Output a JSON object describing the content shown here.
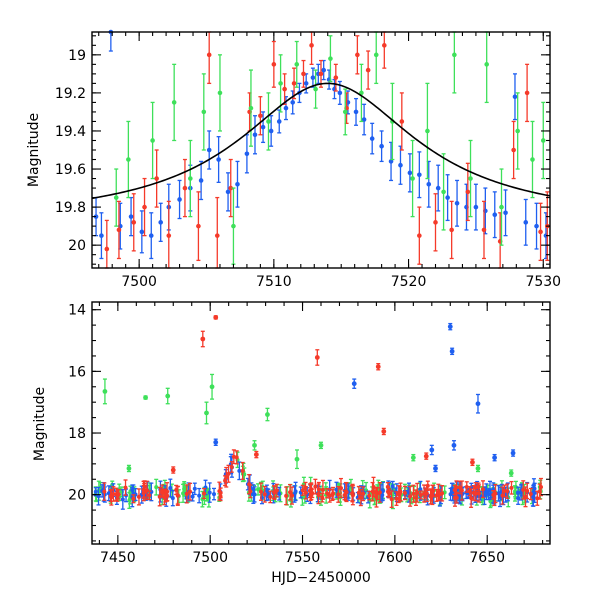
{
  "colors": {
    "blue": "#1f5ff0",
    "red": "#f53a2a",
    "green": "#3ee05a"
  },
  "chart_data": [
    {
      "type": "scatter",
      "panel": "top",
      "xlabel": "",
      "ylabel": "Magnitude",
      "xlim": [
        7496.5,
        7530.5
      ],
      "ylim": [
        20.12,
        18.88
      ],
      "inverted_y": true,
      "x_ticks": [
        "7500",
        "7510",
        "7520",
        "7530"
      ],
      "y_ticks": [
        "19",
        "19.2",
        "19.4",
        "19.6",
        "19.8",
        "20"
      ],
      "fit_curve": {
        "t0": 7514.0,
        "width": 8.0,
        "baseline": 19.88,
        "peak": 19.15
      },
      "series": [
        {
          "color": "blue",
          "points": [
            [
              7496.8,
              19.85,
              0.1
            ],
            [
              7497.2,
              19.95,
              0.12
            ],
            [
              7497.9,
              18.88,
              0.1
            ],
            [
              7498.6,
              19.9,
              0.12
            ],
            [
              7499.4,
              19.85,
              0.1
            ],
            [
              7500.2,
              19.93,
              0.11
            ],
            [
              7500.9,
              19.95,
              0.12
            ],
            [
              7501.6,
              19.88,
              0.1
            ],
            [
              7502.2,
              19.8,
              0.12
            ],
            [
              7503.0,
              19.76,
              0.1
            ],
            [
              7503.8,
              19.7,
              0.12
            ],
            [
              7504.6,
              19.66,
              0.1
            ],
            [
              7505.2,
              19.5,
              0.1
            ],
            [
              7505.9,
              19.55,
              0.12
            ],
            [
              7506.6,
              19.72,
              0.1
            ],
            [
              7507.3,
              19.68,
              0.12
            ],
            [
              7508.0,
              19.52,
              0.1
            ],
            [
              7508.6,
              19.42,
              0.1
            ],
            [
              7509.2,
              19.38,
              0.08
            ],
            [
              7509.8,
              19.4,
              0.08
            ],
            [
              7510.4,
              19.35,
              0.06
            ],
            [
              7510.9,
              19.28,
              0.06
            ],
            [
              7511.4,
              19.25,
              0.06
            ],
            [
              7511.9,
              19.2,
              0.05
            ],
            [
              7512.4,
              19.15,
              0.05
            ],
            [
              7512.9,
              19.12,
              0.05
            ],
            [
              7513.3,
              19.1,
              0.05
            ],
            [
              7513.7,
              19.08,
              0.05
            ],
            [
              7514.1,
              19.13,
              0.05
            ],
            [
              7514.5,
              19.18,
              0.05
            ],
            [
              7514.9,
              19.2,
              0.06
            ],
            [
              7515.5,
              19.25,
              0.06
            ],
            [
              7516.1,
              19.3,
              0.07
            ],
            [
              7516.7,
              19.34,
              0.08
            ],
            [
              7517.3,
              19.44,
              0.08
            ],
            [
              7518.0,
              19.48,
              0.08
            ],
            [
              7518.7,
              19.56,
              0.1
            ],
            [
              7519.4,
              19.58,
              0.1
            ],
            [
              7520.1,
              19.62,
              0.1
            ],
            [
              7520.8,
              19.63,
              0.12
            ],
            [
              7521.5,
              19.68,
              0.12
            ],
            [
              7522.2,
              19.7,
              0.12
            ],
            [
              7522.9,
              19.75,
              0.12
            ],
            [
              7523.6,
              19.78,
              0.12
            ],
            [
              7524.3,
              19.8,
              0.12
            ],
            [
              7525.0,
              19.8,
              0.12
            ],
            [
              7525.7,
              19.82,
              0.12
            ],
            [
              7526.4,
              19.84,
              0.12
            ],
            [
              7527.2,
              19.83,
              0.12
            ],
            [
              7527.9,
              19.22,
              0.12
            ],
            [
              7528.7,
              19.88,
              0.12
            ],
            [
              7529.5,
              19.9,
              0.12
            ],
            [
              7530.2,
              19.95,
              0.12
            ]
          ]
        },
        {
          "color": "red",
          "points": [
            [
              7497.6,
              20.02,
              0.15
            ],
            [
              7498.5,
              19.92,
              0.15
            ],
            [
              7499.6,
              19.88,
              0.15
            ],
            [
              7500.4,
              19.8,
              0.15
            ],
            [
              7501.3,
              19.65,
              0.15
            ],
            [
              7502.2,
              19.95,
              0.18
            ],
            [
              7503.4,
              19.7,
              0.15
            ],
            [
              7504.4,
              19.9,
              0.18
            ],
            [
              7505.2,
              19.0,
              0.15
            ],
            [
              7505.8,
              19.95,
              0.2
            ],
            [
              7506.8,
              19.7,
              0.15
            ],
            [
              7508.2,
              19.3,
              0.1
            ],
            [
              7509.0,
              19.32,
              0.1
            ],
            [
              7510.0,
              19.05,
              0.12
            ],
            [
              7510.8,
              19.18,
              0.08
            ],
            [
              7511.5,
              19.15,
              0.08
            ],
            [
              7512.2,
              19.1,
              0.07
            ],
            [
              7512.8,
              18.95,
              0.1
            ],
            [
              7513.5,
              19.1,
              0.07
            ],
            [
              7514.6,
              19.12,
              0.07
            ],
            [
              7515.4,
              19.28,
              0.08
            ],
            [
              7516.2,
              19.0,
              0.1
            ],
            [
              7517.0,
              19.08,
              0.1
            ],
            [
              7518.2,
              18.95,
              0.12
            ],
            [
              7519.5,
              19.35,
              0.15
            ],
            [
              7520.8,
              19.95,
              0.15
            ],
            [
              7522.0,
              19.88,
              0.15
            ],
            [
              7523.2,
              19.92,
              0.15
            ],
            [
              7524.4,
              19.72,
              0.15
            ],
            [
              7525.6,
              19.92,
              0.15
            ],
            [
              7526.8,
              19.98,
              0.15
            ],
            [
              7527.8,
              19.5,
              0.15
            ],
            [
              7528.8,
              19.2,
              0.15
            ],
            [
              7529.8,
              19.93,
              0.15
            ],
            [
              7530.3,
              19.9,
              0.18
            ]
          ]
        },
        {
          "color": "green",
          "points": [
            [
              7498.3,
              19.75,
              0.15
            ],
            [
              7499.2,
              19.55,
              0.2
            ],
            [
              7501.0,
              19.45,
              0.2
            ],
            [
              7502.6,
              19.25,
              0.2
            ],
            [
              7503.8,
              19.65,
              0.2
            ],
            [
              7504.8,
              19.3,
              0.2
            ],
            [
              7506.0,
              19.2,
              0.2
            ],
            [
              7507.0,
              19.9,
              0.2
            ],
            [
              7508.3,
              19.28,
              0.2
            ],
            [
              7509.6,
              19.35,
              0.15
            ],
            [
              7510.5,
              19.15,
              0.15
            ],
            [
              7511.7,
              19.05,
              0.12
            ],
            [
              7513.1,
              19.18,
              0.1
            ],
            [
              7514.2,
              19.02,
              0.12
            ],
            [
              7515.3,
              19.3,
              0.12
            ],
            [
              7516.5,
              19.2,
              0.15
            ],
            [
              7517.6,
              19.0,
              0.15
            ],
            [
              7518.8,
              19.35,
              0.2
            ],
            [
              7520.3,
              19.65,
              0.2
            ],
            [
              7521.4,
              19.4,
              0.25
            ],
            [
              7522.6,
              19.72,
              0.2
            ],
            [
              7523.4,
              19.0,
              0.2
            ],
            [
              7524.6,
              19.65,
              0.2
            ],
            [
              7525.8,
              19.05,
              0.2
            ],
            [
              7526.9,
              19.8,
              0.2
            ],
            [
              7528.1,
              19.4,
              0.2
            ],
            [
              7529.2,
              19.55,
              0.2
            ],
            [
              7530.0,
              19.45,
              0.2
            ]
          ]
        }
      ]
    },
    {
      "type": "scatter",
      "panel": "bottom",
      "xlabel": "HJD−2450000",
      "ylabel": "Magnitude",
      "xlim": [
        7436,
        7684
      ],
      "ylim": [
        21.6,
        13.75
      ],
      "inverted_y": true,
      "x_ticks": [
        "7450",
        "7500",
        "7550",
        "7600",
        "7650"
      ],
      "y_ticks": [
        "14",
        "16",
        "18",
        "20"
      ],
      "baseline_cloud": {
        "x_range": [
          7438,
          7680
        ],
        "mean": 19.95,
        "spread": 0.35,
        "per_color": 140
      },
      "bump": {
        "x_range": [
          7506,
          7522
        ],
        "mag": 19.0
      },
      "series": [
        {
          "color": "red",
          "outliers": [
            [
              7496,
              14.95,
              0.25
            ],
            [
              7503,
              14.25,
              0.05
            ],
            [
              7558,
              15.55,
              0.25
            ],
            [
              7591,
              15.85,
              0.1
            ],
            [
              7594,
              17.95,
              0.1
            ],
            [
              7617,
              18.75,
              0.1
            ],
            [
              7642,
              18.95,
              0.1
            ],
            [
              7525,
              18.7,
              0.1
            ],
            [
              7480,
              19.2,
              0.1
            ]
          ]
        },
        {
          "color": "blue",
          "outliers": [
            [
              7630,
              14.55,
              0.1
            ],
            [
              7631,
              15.35,
              0.1
            ],
            [
              7578,
              16.4,
              0.15
            ],
            [
              7645,
              17.05,
              0.3
            ],
            [
              7503,
              18.3,
              0.1
            ],
            [
              7620,
              18.55,
              0.15
            ],
            [
              7632,
              18.4,
              0.15
            ],
            [
              7654,
              18.8,
              0.1
            ],
            [
              7664,
              18.65,
              0.1
            ],
            [
              7622,
              19.15,
              0.1
            ]
          ]
        },
        {
          "color": "green",
          "outliers": [
            [
              7443,
              16.65,
              0.4
            ],
            [
              7465,
              16.85,
              0.05
            ],
            [
              7477,
              16.8,
              0.25
            ],
            [
              7498,
              17.35,
              0.35
            ],
            [
              7501,
              16.5,
              0.4
            ],
            [
              7531,
              17.4,
              0.2
            ],
            [
              7524,
              18.4,
              0.15
            ],
            [
              7560,
              18.4,
              0.1
            ],
            [
              7547,
              18.85,
              0.3
            ],
            [
              7610,
              18.8,
              0.1
            ],
            [
              7645,
              19.15,
              0.1
            ],
            [
              7663,
              19.3,
              0.1
            ],
            [
              7456,
              19.15,
              0.1
            ]
          ]
        }
      ]
    }
  ]
}
